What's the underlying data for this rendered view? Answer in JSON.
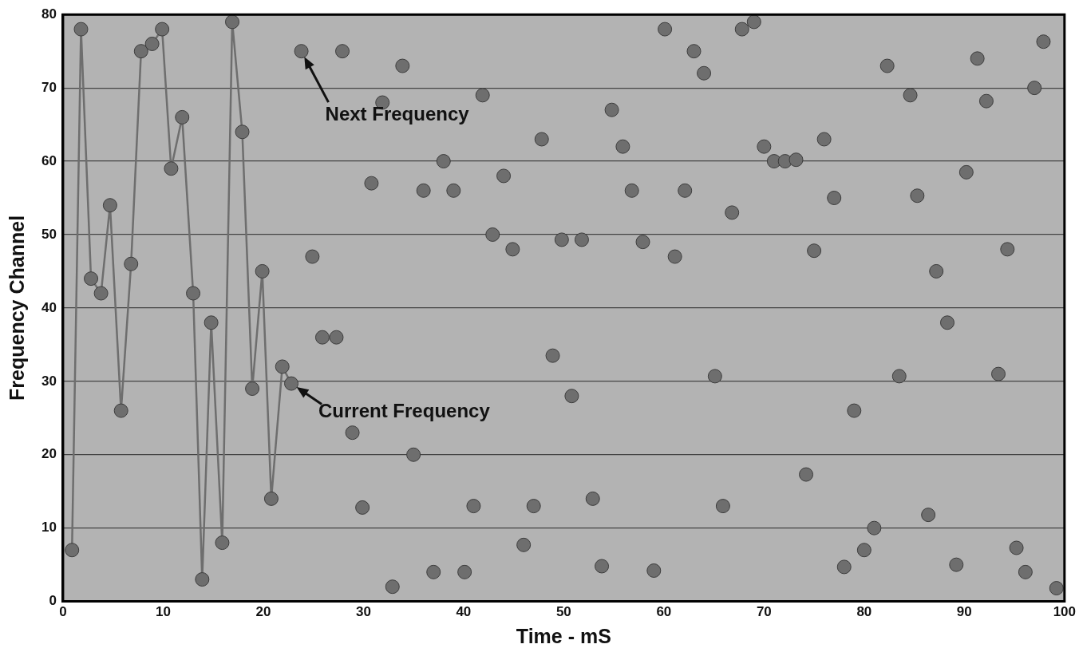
{
  "chart_data": {
    "type": "scatter",
    "xlabel": "Time - mS",
    "ylabel": "Frequency Channel",
    "xlim": [
      0,
      100
    ],
    "xticks": [
      0,
      10,
      20,
      30,
      40,
      50,
      60,
      70,
      80,
      90,
      100
    ],
    "ylim": [
      0,
      80
    ],
    "yticks": [
      0,
      10,
      20,
      30,
      40,
      50,
      60,
      70,
      80
    ],
    "grid": "y",
    "marker": "circle",
    "line_style": "solid",
    "legend": false,
    "annotations": [
      {
        "text": "Next Frequency",
        "x": 23.8,
        "y": 75
      },
      {
        "text": "Current Frequency",
        "x": 22.8,
        "y": 29.7
      }
    ],
    "series": [
      {
        "type": "line",
        "color": "#6e6e6e",
        "x": [
          0.9,
          1.8,
          2.8,
          3.8,
          4.7,
          5.8,
          6.8,
          7.8,
          8.9,
          9.9,
          10.8,
          11.9,
          13,
          13.9,
          14.8,
          15.9,
          16.9,
          17.9,
          18.9,
          19.9,
          20.8,
          21.9,
          22.8
        ],
        "values": [
          7,
          78,
          44,
          42,
          54,
          26,
          46,
          75,
          76,
          78,
          59,
          66,
          42,
          3,
          38,
          8,
          79,
          64,
          29,
          45,
          14,
          32,
          29.7
        ]
      },
      {
        "color": "#6e6e6e",
        "x": [
          23.8,
          24.9,
          25.9,
          27.3,
          27.9,
          28.9,
          29.9,
          30.8,
          31.9,
          32.9,
          33.9,
          35,
          36,
          37,
          38,
          39,
          40.1,
          41,
          41.9,
          42.9,
          44,
          44.9,
          46,
          47,
          47.8,
          48.9,
          49.8,
          50.8,
          51.8,
          52.9,
          53.8,
          54.8,
          55.9,
          56.8,
          57.9,
          59,
          60.1,
          61.1,
          62.1,
          63,
          64,
          65.1,
          65.9,
          66.8,
          67.8,
          69,
          70,
          71,
          72.1,
          73.2,
          74.2,
          75,
          76,
          77,
          78,
          79,
          80,
          81,
          82.3,
          83.5,
          84.6,
          85.3,
          86.4,
          87.2,
          88.3,
          89.2,
          90.2,
          91.3,
          92.2,
          93.4,
          94.3,
          95.2,
          96.1,
          97,
          97.9,
          99.2
        ],
        "values": [
          75,
          47,
          36,
          36,
          75,
          23,
          12.8,
          57,
          68,
          2,
          73,
          20,
          56,
          4,
          60,
          56,
          4,
          13,
          69,
          50,
          58,
          48,
          7.7,
          13,
          63,
          33.5,
          49.3,
          28,
          49.3,
          14,
          4.8,
          67,
          62,
          56,
          49,
          4.2,
          78,
          47,
          56,
          75,
          72,
          30.7,
          13,
          53,
          78,
          79,
          62,
          60,
          60,
          60.2,
          17.3,
          47.8,
          63,
          55,
          4.7,
          26,
          7,
          10,
          73,
          30.7,
          69,
          55.3,
          11.8,
          45,
          38,
          5,
          58.5,
          74,
          68.2,
          31,
          48,
          7.3,
          4,
          70,
          76.3,
          1.8
        ]
      }
    ]
  }
}
